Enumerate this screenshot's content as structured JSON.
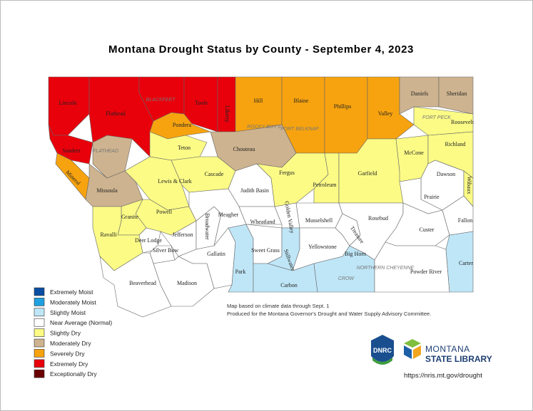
{
  "title": "Montana Drought Status by County - September 4, 2023",
  "counties": [
    {
      "name": "Lincoln",
      "color": "#e8000b"
    },
    {
      "name": "Flathead",
      "color": "#e8000b"
    },
    {
      "color": "#e8000b"
    },
    {
      "name": "Toole",
      "color": "#e8000b"
    },
    {
      "name": "Liberty",
      "color": "#e8000b"
    },
    {
      "name": "Hill",
      "color": "#f7a30f"
    },
    {
      "name": "Blaine",
      "color": "#f7a30f"
    },
    {
      "name": "Phillips",
      "color": "#f7a30f"
    },
    {
      "name": "Valley",
      "color": "#f7a30f"
    },
    {
      "name": "Daniels",
      "color": "#cdb38f"
    },
    {
      "name": "Sheridan",
      "color": "#cdb38f"
    },
    {
      "name": "Roosevelt",
      "color": "#fbfb86"
    },
    {
      "name": "Sanders",
      "color": "#e8000b"
    },
    {
      "name": "Mineral",
      "color": "#f7a30f"
    },
    {
      "color": "#cdb38f"
    },
    {
      "name": "Missoula",
      "color": "#cdb38f"
    },
    {
      "name": "Pondera",
      "color": "#f7a30f"
    },
    {
      "name": "Teton",
      "color": "#fbfb86"
    },
    {
      "name": "Chouteau",
      "color": "#cdb38f"
    },
    {
      "name": "Lewis & Clark",
      "color": "#fbfb86"
    },
    {
      "name": "Cascade",
      "color": "#fbfb86"
    },
    {
      "name": "Judith Basin",
      "color": "#ffffff"
    },
    {
      "name": "Fergus",
      "color": "#fbfb86"
    },
    {
      "name": "Petroleum",
      "color": "#fbfb86"
    },
    {
      "name": "Garfield",
      "color": "#fbfb86"
    },
    {
      "name": "McCone",
      "color": "#fbfb86"
    },
    {
      "name": "Richland",
      "color": "#fbfb86"
    },
    {
      "name": "Dawson",
      "color": "#ffffff"
    },
    {
      "name": "Wibaux",
      "color": "#fbfb86"
    },
    {
      "name": "Prairie",
      "color": "#ffffff"
    },
    {
      "name": "Powell",
      "color": "#fbfb86"
    },
    {
      "name": "Granite",
      "color": "#fbfb86"
    },
    {
      "name": "Ravalli",
      "color": "#fbfb86"
    },
    {
      "name": "Deer Lodge",
      "color": "#ffffff"
    },
    {
      "name": "Silver Bow",
      "color": "#ffffff"
    },
    {
      "name": "Jefferson",
      "color": "#ffffff"
    },
    {
      "name": "Broadwater",
      "color": "#ffffff"
    },
    {
      "name": "Meagher",
      "color": "#ffffff"
    },
    {
      "name": "Gallatin",
      "color": "#ffffff"
    },
    {
      "name": "Madison",
      "color": "#ffffff"
    },
    {
      "name": "Beaverhead",
      "color": "#ffffff"
    },
    {
      "name": "Park",
      "color": "#bfe6f7"
    },
    {
      "name": "Wheatland",
      "color": "#ffffff"
    },
    {
      "name": "Golden Valley",
      "color": "#ffffff"
    },
    {
      "name": "Sweet Grass",
      "color": "#ffffff"
    },
    {
      "name": "Musselshell",
      "color": "#ffffff"
    },
    {
      "name": "Stillwater",
      "color": "#bfe6f7"
    },
    {
      "name": "Yellowstone",
      "color": "#ffffff"
    },
    {
      "name": "Carbon",
      "color": "#bfe6f7"
    },
    {
      "name": "Big Horn",
      "color": "#bfe6f7"
    },
    {
      "name": "Treasure",
      "color": "#ffffff"
    },
    {
      "name": "Rosebud",
      "color": "#ffffff"
    },
    {
      "name": "Custer",
      "color": "#ffffff"
    },
    {
      "name": "Fallon",
      "color": "#ffffff"
    },
    {
      "name": "Powder River",
      "color": "#ffffff"
    },
    {
      "name": "Carter",
      "color": "#bfe6f7"
    }
  ],
  "reservations": [
    "BLACKFEET",
    "ROCKY BOY'S",
    "FORT BELKNAP",
    "FORT PECK",
    "FLATHEAD",
    "CROW",
    "NORTHERN CHEYENNE"
  ],
  "legend": [
    {
      "label": "Extremely Moist",
      "color": "#0a4ea3"
    },
    {
      "label": "Moderately Moist",
      "color": "#1fa0e0"
    },
    {
      "label": "Slightly Moist",
      "color": "#bfe6f7"
    },
    {
      "label": "Near Average (Normal)",
      "color": "#ffffff"
    },
    {
      "label": "Slightly Dry",
      "color": "#fbfb86"
    },
    {
      "label": "Moderately Dry",
      "color": "#cdb38f"
    },
    {
      "label": "Severely Dry",
      "color": "#f7a30f"
    },
    {
      "label": "Extremely Dry",
      "color": "#e8000b"
    },
    {
      "label": "Exceptionally Dry",
      "color": "#6b0000"
    }
  ],
  "notes": [
    "Map based on climate data through Sept. 1",
    "Produced for the Montana Governor's Drought and Water Supply Advisory Committee."
  ],
  "logos": {
    "dnrc": "DNRC",
    "library_top": "MONTANA",
    "library_bottom": "STATE LIBRARY"
  },
  "url": "https://nris.mt.gov/drought"
}
